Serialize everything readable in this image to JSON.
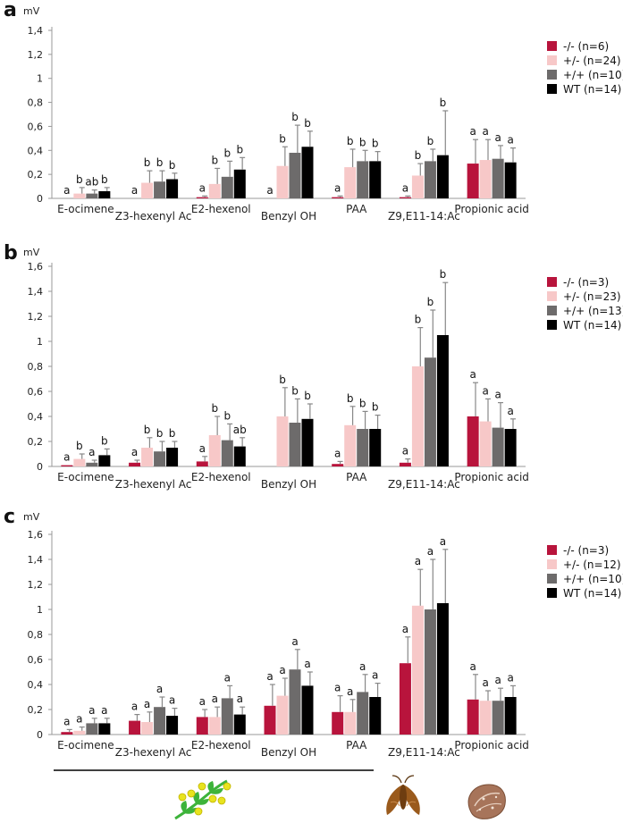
{
  "colors": {
    "KO": "#b8143c",
    "HET": "#f7c8c8",
    "HOM": "#6d6b6b",
    "WT": "#000000",
    "plant_leaf": "#3db33a",
    "plant_flower": "#e8e31e",
    "moth": "#9a5a1c",
    "seed": "#a7745a"
  },
  "icons": [
    "plant-icon",
    "moth-icon",
    "seed-icon"
  ],
  "chart_data": [
    {
      "type": "bar",
      "panel": "a",
      "ylabel": "mV",
      "ylim": [
        0,
        1.4
      ],
      "yticks": [
        "0",
        "0,2",
        "0,4",
        "0,6",
        "0,8",
        "1",
        "1,2",
        "1,4"
      ],
      "categories": [
        "E-ocimene",
        "Z3-hexenyl Ac",
        "E2-hexenol",
        "Benzyl OH",
        "PAA",
        "Z9,E11-14:Ac",
        "Propionic acid"
      ],
      "series": [
        {
          "name": "-/- (n=6)",
          "values": [
            0.0,
            0.0,
            0.01,
            0.0,
            0.01,
            0.01,
            0.29
          ],
          "errors": [
            0.0,
            0.0,
            0.01,
            0.0,
            0.01,
            0.01,
            0.2
          ]
        },
        {
          "name": "+/- (n=24)",
          "values": [
            0.04,
            0.13,
            0.12,
            0.27,
            0.26,
            0.19,
            0.32
          ],
          "errors": [
            0.05,
            0.1,
            0.13,
            0.16,
            0.15,
            0.1,
            0.17
          ]
        },
        {
          "name": "+/+ (n=10)",
          "values": [
            0.04,
            0.14,
            0.18,
            0.38,
            0.31,
            0.31,
            0.33
          ],
          "errors": [
            0.03,
            0.09,
            0.13,
            0.23,
            0.09,
            0.1,
            0.11
          ]
        },
        {
          "name": "WT (n=14)",
          "values": [
            0.06,
            0.16,
            0.24,
            0.43,
            0.31,
            0.36,
            0.3
          ],
          "errors": [
            0.03,
            0.05,
            0.1,
            0.13,
            0.08,
            0.37,
            0.12
          ]
        }
      ],
      "labels": [
        [
          "a",
          "b",
          "ab",
          "b"
        ],
        [
          "a",
          "b",
          "b",
          "b"
        ],
        [
          "a",
          "b",
          "b",
          "b"
        ],
        [
          "a",
          "b",
          "b",
          "b"
        ],
        [
          "a",
          "b",
          "b",
          "b"
        ],
        [
          "a",
          "b",
          "b",
          "b"
        ],
        [
          "a",
          "a",
          "a",
          "a"
        ]
      ],
      "legend_position": "right"
    },
    {
      "type": "bar",
      "panel": "b",
      "ylabel": "mV",
      "ylim": [
        0,
        1.6
      ],
      "yticks": [
        "0",
        "0,2",
        "0,4",
        "0,6",
        "0,8",
        "1",
        "1,2",
        "1,4",
        "1,6"
      ],
      "categories": [
        "E-ocimene",
        "Z3-hexenyl Ac",
        "E2-hexenol",
        "Benzyl OH",
        "PAA",
        "Z9,E11-14:Ac",
        "Propionic acid"
      ],
      "series": [
        {
          "name": "-/- (n=3)",
          "values": [
            0.01,
            0.03,
            0.04,
            0.0,
            0.02,
            0.03,
            0.4
          ],
          "errors": [
            0.0,
            0.02,
            0.04,
            0.0,
            0.02,
            0.03,
            0.27
          ]
        },
        {
          "name": "+/- (n=23)",
          "values": [
            0.06,
            0.15,
            0.25,
            0.4,
            0.33,
            0.8,
            0.36
          ],
          "errors": [
            0.04,
            0.08,
            0.15,
            0.23,
            0.15,
            0.31,
            0.18
          ]
        },
        {
          "name": "+/+ (n=13)",
          "values": [
            0.03,
            0.12,
            0.21,
            0.35,
            0.3,
            0.87,
            0.31
          ],
          "errors": [
            0.02,
            0.08,
            0.13,
            0.19,
            0.14,
            0.38,
            0.2
          ]
        },
        {
          "name": "WT (n=14)",
          "values": [
            0.09,
            0.15,
            0.16,
            0.38,
            0.3,
            1.05,
            0.3
          ],
          "errors": [
            0.05,
            0.05,
            0.07,
            0.12,
            0.11,
            0.42,
            0.08
          ]
        }
      ],
      "labels": [
        [
          "a",
          "b",
          "a",
          "b"
        ],
        [
          "a",
          "b",
          "b",
          "b"
        ],
        [
          "a",
          "b",
          "b",
          "ab"
        ],
        [
          "",
          "b",
          "b",
          "b"
        ],
        [
          "a",
          "b",
          "b",
          "b"
        ],
        [
          "a",
          "b",
          "b",
          "b"
        ],
        [
          "a",
          "a",
          "a",
          "a"
        ]
      ],
      "legend_position": "right"
    },
    {
      "type": "bar",
      "panel": "c",
      "ylabel": "mV",
      "ylim": [
        0,
        1.6
      ],
      "yticks": [
        "0",
        "0,2",
        "0,4",
        "0,6",
        "0,8",
        "1",
        "1,2",
        "1,4",
        "1,6"
      ],
      "categories": [
        "E-ocimene",
        "Z3-hexenyl Ac",
        "E2-hexenol",
        "Benzyl OH",
        "PAA",
        "Z9,E11-14:Ac",
        "Propionic acid"
      ],
      "series": [
        {
          "name": "-/- (n=3)",
          "values": [
            0.02,
            0.11,
            0.14,
            0.23,
            0.18,
            0.57,
            0.28
          ],
          "errors": [
            0.02,
            0.05,
            0.06,
            0.17,
            0.13,
            0.21,
            0.2
          ]
        },
        {
          "name": "+/- (n=12)",
          "values": [
            0.03,
            0.1,
            0.14,
            0.31,
            0.18,
            1.03,
            0.27
          ],
          "errors": [
            0.03,
            0.08,
            0.08,
            0.14,
            0.1,
            0.29,
            0.08
          ]
        },
        {
          "name": "+/+ (n=10)",
          "values": [
            0.09,
            0.22,
            0.29,
            0.52,
            0.34,
            1.0,
            0.27
          ],
          "errors": [
            0.04,
            0.08,
            0.1,
            0.16,
            0.14,
            0.4,
            0.1
          ]
        },
        {
          "name": "WT (n=14)",
          "values": [
            0.09,
            0.15,
            0.16,
            0.39,
            0.3,
            1.05,
            0.3
          ],
          "errors": [
            0.04,
            0.06,
            0.06,
            0.11,
            0.11,
            0.43,
            0.09
          ]
        }
      ],
      "labels": [
        [
          "a",
          "a",
          "a",
          "a"
        ],
        [
          "a",
          "a",
          "a",
          "a"
        ],
        [
          "a",
          "a",
          "a",
          "a"
        ],
        [
          "a",
          "a",
          "a",
          "a"
        ],
        [
          "a",
          "a",
          "a",
          "a"
        ],
        [
          "a",
          "a",
          "a",
          "a"
        ],
        [
          "a",
          "a",
          "a",
          "a"
        ]
      ],
      "legend_position": "right"
    }
  ]
}
